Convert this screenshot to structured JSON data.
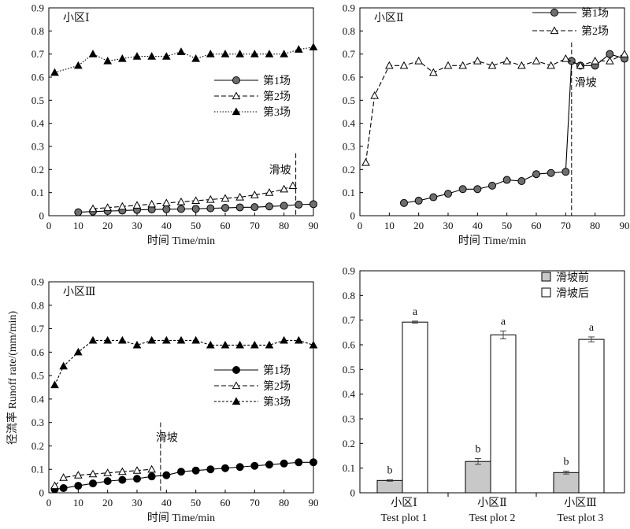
{
  "ylabel": "径流率 Runoff rate/(mm/min)",
  "chart_data": [
    {
      "type": "line",
      "title": "小区Ⅰ",
      "xlabel": "时间 Time/min",
      "xlim": [
        0,
        90
      ],
      "ylim": [
        0,
        0.9
      ],
      "xticks": [
        0,
        10,
        20,
        30,
        40,
        50,
        60,
        70,
        80,
        90
      ],
      "yticks": [
        0,
        0.1,
        0.2,
        0.3,
        0.4,
        0.5,
        0.6,
        0.7,
        0.8,
        0.9
      ],
      "legend_position": "center-right",
      "annotation": {
        "text": "滑坡",
        "x": 84
      },
      "series": [
        {
          "name": "第1场",
          "style": "solid-circle-gray",
          "x": [
            10,
            15,
            20,
            25,
            30,
            35,
            40,
            45,
            50,
            55,
            60,
            65,
            70,
            75,
            80,
            85,
            90
          ],
          "y": [
            0.015,
            0.018,
            0.02,
            0.022,
            0.025,
            0.027,
            0.028,
            0.029,
            0.03,
            0.032,
            0.034,
            0.036,
            0.037,
            0.04,
            0.043,
            0.048,
            0.05
          ]
        },
        {
          "name": "第2场",
          "style": "dashed-open-triangle",
          "x": [
            15,
            20,
            25,
            30,
            35,
            40,
            45,
            50,
            55,
            60,
            65,
            70,
            75,
            80,
            83
          ],
          "y": [
            0.03,
            0.035,
            0.04,
            0.045,
            0.05,
            0.055,
            0.06,
            0.065,
            0.07,
            0.075,
            0.08,
            0.09,
            0.1,
            0.115,
            0.13
          ]
        },
        {
          "name": "第3场",
          "style": "dotted-filled-triangle",
          "x": [
            2,
            10,
            15,
            20,
            25,
            30,
            35,
            40,
            45,
            50,
            55,
            60,
            65,
            70,
            75,
            80,
            85,
            90
          ],
          "y": [
            0.62,
            0.65,
            0.7,
            0.67,
            0.68,
            0.69,
            0.69,
            0.69,
            0.71,
            0.68,
            0.7,
            0.7,
            0.7,
            0.7,
            0.7,
            0.7,
            0.72,
            0.73
          ]
        }
      ]
    },
    {
      "type": "line",
      "title": "小区Ⅱ",
      "xlabel": "时间 Time/min",
      "xlim": [
        0,
        90
      ],
      "ylim": [
        0,
        0.9
      ],
      "xticks": [
        0,
        10,
        20,
        30,
        40,
        50,
        60,
        70,
        80,
        90
      ],
      "yticks": [
        0,
        0.1,
        0.2,
        0.3,
        0.4,
        0.5,
        0.6,
        0.7,
        0.8,
        0.9
      ],
      "legend_position": "top-right",
      "annotation": {
        "text": "滑坡",
        "x": 72
      },
      "series": [
        {
          "name": "第1场",
          "style": "solid-circle-gray",
          "x": [
            15,
            20,
            25,
            30,
            35,
            40,
            45,
            50,
            55,
            60,
            65,
            70,
            72,
            75,
            80,
            85,
            90
          ],
          "y": [
            0.055,
            0.065,
            0.08,
            0.095,
            0.115,
            0.115,
            0.13,
            0.155,
            0.15,
            0.18,
            0.185,
            0.19,
            0.67,
            0.65,
            0.65,
            0.7,
            0.68
          ]
        },
        {
          "name": "第2场",
          "style": "dashed-open-triangle",
          "x": [
            2,
            5,
            10,
            15,
            20,
            25,
            30,
            35,
            40,
            45,
            50,
            55,
            60,
            65,
            70,
            75,
            80,
            85,
            90
          ],
          "y": [
            0.23,
            0.52,
            0.65,
            0.65,
            0.67,
            0.62,
            0.65,
            0.65,
            0.67,
            0.65,
            0.67,
            0.65,
            0.67,
            0.65,
            0.68,
            0.65,
            0.67,
            0.67,
            0.7
          ]
        }
      ]
    },
    {
      "type": "line",
      "title": "小区Ⅲ",
      "xlabel": "时间 Time/min",
      "xlim": [
        0,
        90
      ],
      "ylim": [
        0,
        0.9
      ],
      "xticks": [
        0,
        10,
        20,
        30,
        40,
        50,
        60,
        70,
        80,
        90
      ],
      "yticks": [
        0,
        0.1,
        0.2,
        0.3,
        0.4,
        0.5,
        0.6,
        0.7,
        0.8,
        0.9
      ],
      "legend_position": "center-right",
      "annotation": {
        "text": "滑坡",
        "x": 38
      },
      "series": [
        {
          "name": "第1场",
          "style": "solid-circle-black",
          "x": [
            2,
            5,
            10,
            15,
            20,
            25,
            30,
            35,
            40,
            45,
            50,
            55,
            60,
            65,
            70,
            75,
            80,
            85,
            90
          ],
          "y": [
            0.015,
            0.02,
            0.03,
            0.04,
            0.05,
            0.055,
            0.06,
            0.07,
            0.075,
            0.09,
            0.095,
            0.1,
            0.105,
            0.11,
            0.115,
            0.12,
            0.125,
            0.13,
            0.13
          ]
        },
        {
          "name": "第2场",
          "style": "dashed-open-triangle",
          "x": [
            2,
            5,
            10,
            15,
            20,
            25,
            30,
            35
          ],
          "y": [
            0.03,
            0.065,
            0.075,
            0.08,
            0.085,
            0.09,
            0.095,
            0.1
          ]
        },
        {
          "name": "第3场",
          "style": "short-dashed-filled-triangle",
          "x": [
            2,
            5,
            10,
            15,
            20,
            25,
            30,
            35,
            40,
            45,
            50,
            55,
            60,
            65,
            70,
            75,
            80,
            85,
            90
          ],
          "y": [
            0.46,
            0.54,
            0.6,
            0.65,
            0.65,
            0.65,
            0.63,
            0.65,
            0.65,
            0.65,
            0.65,
            0.63,
            0.63,
            0.63,
            0.63,
            0.63,
            0.65,
            0.65,
            0.63
          ]
        }
      ]
    },
    {
      "type": "bar",
      "ylim": [
        0,
        0.9
      ],
      "yticks": [
        0,
        0.1,
        0.2,
        0.3,
        0.4,
        0.5,
        0.6,
        0.7,
        0.8,
        0.9
      ],
      "legend_position": "top-left",
      "categories": [
        {
          "cn": "小区Ⅰ",
          "en": "Test plot 1"
        },
        {
          "cn": "小区Ⅱ",
          "en": "Test plot 2"
        },
        {
          "cn": "小区Ⅲ",
          "en": "Test plot 3"
        }
      ],
      "series": [
        {
          "name": "滑坡前",
          "color": "#c8c8c8",
          "values": [
            0.05,
            0.127,
            0.082
          ],
          "errors": [
            0.003,
            0.012,
            0.006
          ],
          "letters": [
            "b",
            "b",
            "b"
          ]
        },
        {
          "name": "滑坡后",
          "color": "#ffffff",
          "values": [
            0.692,
            0.64,
            0.622
          ],
          "errors": [
            0.004,
            0.016,
            0.01
          ],
          "letters": [
            "a",
            "a",
            "a"
          ]
        }
      ]
    }
  ]
}
